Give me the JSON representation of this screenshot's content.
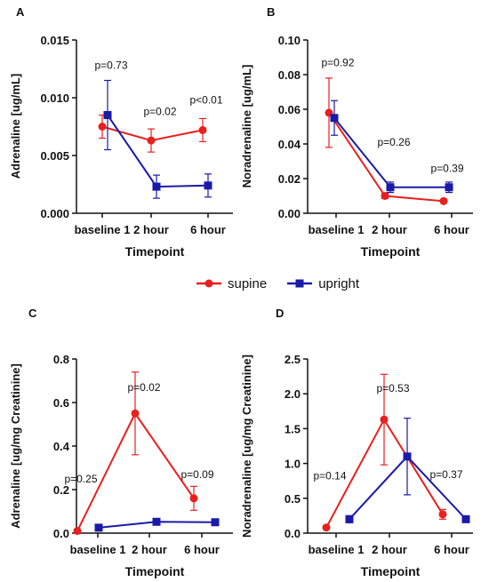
{
  "chart_data": [
    {
      "panel": "A",
      "type": "line",
      "categories": [
        "baseline 1",
        "2 hour",
        "6 hour"
      ],
      "xlabel": "Timepoint",
      "ylabel": "Adrenaline [ug/mL]",
      "ylim": [
        0,
        0.015
      ],
      "yticks": [
        0.0,
        0.005,
        0.01,
        0.015
      ],
      "ytick_labels": [
        "0.000",
        "0.005",
        "0.010",
        "0.015"
      ],
      "series": [
        {
          "name": "supine",
          "color": "#e8201e",
          "marker": "circle",
          "values": [
            0.0075,
            0.0063,
            0.0072
          ],
          "errors": [
            0.001,
            0.001,
            0.001
          ]
        },
        {
          "name": "upright",
          "color": "#1a1aa8",
          "marker": "square",
          "values": [
            0.0085,
            0.0023,
            0.0024
          ],
          "errors": [
            0.003,
            0.001,
            0.001
          ]
        }
      ],
      "annotations": [
        {
          "category": "baseline 1",
          "y": 0.0128,
          "text": "p=0.73"
        },
        {
          "category": "2 hour",
          "y": 0.0088,
          "text": "p=0.02"
        },
        {
          "category": "6 hour",
          "y": 0.0098,
          "text": "p<0.01"
        }
      ]
    },
    {
      "panel": "B",
      "type": "line",
      "categories": [
        "baseline 1",
        "2 hour",
        "6 hour"
      ],
      "xlabel": "Timepoint",
      "ylabel": "Noradrenaline [ug/mL]",
      "ylim": [
        0,
        0.1
      ],
      "yticks": [
        0,
        0.02,
        0.04,
        0.06,
        0.08,
        0.1
      ],
      "ytick_labels": [
        "0.00",
        "0.02",
        "0.04",
        "0.06",
        "0.08",
        "0.10"
      ],
      "series": [
        {
          "name": "supine",
          "color": "#e8201e",
          "marker": "circle",
          "values": [
            0.058,
            0.01,
            0.007
          ],
          "errors": [
            0.02,
            0.0015,
            0.0005
          ]
        },
        {
          "name": "upright",
          "color": "#1a1aa8",
          "marker": "square",
          "values": [
            0.055,
            0.015,
            0.015
          ],
          "errors": [
            0.01,
            0.003,
            0.003
          ]
        }
      ],
      "annotations": [
        {
          "category": "baseline 1",
          "y": 0.087,
          "text": "p=0.92"
        },
        {
          "category": "2 hour",
          "y": 0.041,
          "text": "p=0.26"
        },
        {
          "category": "6 hour",
          "y": 0.026,
          "text": "p=0.39"
        }
      ]
    },
    {
      "panel": "C",
      "type": "line",
      "categories": [
        "baseline 1",
        "2 hour",
        "6 hour"
      ],
      "xlabel": "Timepoint",
      "ylabel": "Adrenaline [ug/mg Creatinine]",
      "ylim": [
        0,
        0.8
      ],
      "yticks": [
        0.0,
        0.2,
        0.4,
        0.6,
        0.8
      ],
      "ytick_labels": [
        "0.0",
        "0.2",
        "0.4",
        "0.6",
        "0.8"
      ],
      "series": [
        {
          "name": "supine",
          "color": "#e8201e",
          "marker": "circle",
          "values": [
            0.01,
            0.55,
            0.16
          ],
          "errors": [
            0.005,
            0.19,
            0.055
          ]
        },
        {
          "name": "upright",
          "color": "#1a1aa8",
          "marker": "square",
          "values": [
            0.025,
            0.052,
            0.05
          ],
          "errors": [
            0.005,
            0.01,
            0.01
          ]
        }
      ],
      "annotations": [
        {
          "category": "baseline 1",
          "y": 0.25,
          "text": "p=0.25"
        },
        {
          "category": "2 hour",
          "y": 0.67,
          "text": "p=0.02"
        },
        {
          "category": "6 hour",
          "y": 0.27,
          "text": "p=0.09"
        }
      ]
    },
    {
      "panel": "D",
      "type": "line",
      "categories": [
        "baseline 1",
        "2 hour",
        "6 hour"
      ],
      "xlabel": "Timepoint",
      "ylabel": "Noradrenaline [ug/mg Creatinine]",
      "ylim": [
        0,
        2.5
      ],
      "yticks": [
        0.0,
        0.5,
        1.0,
        1.5,
        2.0,
        2.5
      ],
      "ytick_labels": [
        "0.0",
        "0.5",
        "1.0",
        "1.5",
        "2.0",
        "2.5"
      ],
      "series": [
        {
          "name": "supine",
          "color": "#e8201e",
          "marker": "circle",
          "values": [
            0.08,
            1.63,
            0.27
          ],
          "errors": [
            0.02,
            0.65,
            0.07
          ]
        },
        {
          "name": "upright",
          "color": "#1a1aa8",
          "marker": "square",
          "values": [
            0.2,
            1.1,
            0.2
          ],
          "errors": [
            0.05,
            0.55,
            0.03
          ]
        }
      ],
      "annotations": [
        {
          "category": "baseline 1",
          "y": 0.82,
          "text": "p=0.14"
        },
        {
          "category": "2 hour",
          "y": 2.08,
          "text": "p=0.53"
        },
        {
          "category": "6 hour",
          "y": 0.84,
          "text": "p=0.37"
        }
      ]
    }
  ],
  "legend": {
    "items": [
      {
        "label": "supine",
        "color": "#e8201e",
        "marker": "circle"
      },
      {
        "label": "upright",
        "color": "#1a1aa8",
        "marker": "square"
      }
    ]
  }
}
